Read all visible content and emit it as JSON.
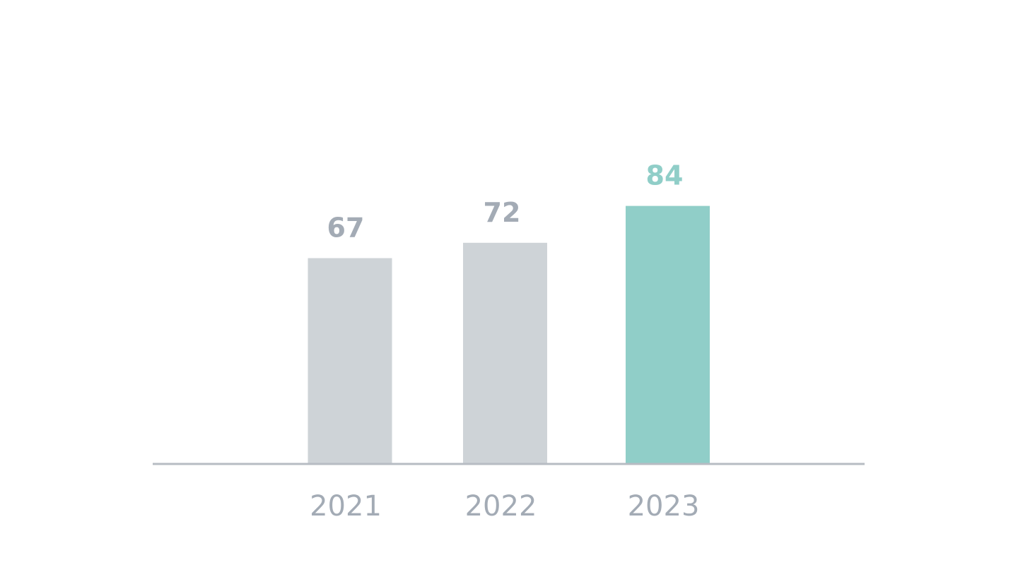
{
  "chart_data": {
    "type": "bar",
    "categories": [
      "2021",
      "2022",
      "2023"
    ],
    "values": [
      67,
      72,
      84
    ],
    "value_labels": [
      "67",
      "72",
      "84"
    ],
    "title": "",
    "xlabel": "",
    "ylabel": "",
    "ylim": [
      0,
      100
    ],
    "grid": false,
    "legend": "none",
    "highlight_index": 2,
    "colors": {
      "bar_default": "#ced3d7",
      "bar_highlight": "#90cec8",
      "label_default": "#a3abb5",
      "label_highlight": "#90cec8",
      "axis": "#b7bcc3",
      "tick_text": "#a3abb5"
    }
  }
}
